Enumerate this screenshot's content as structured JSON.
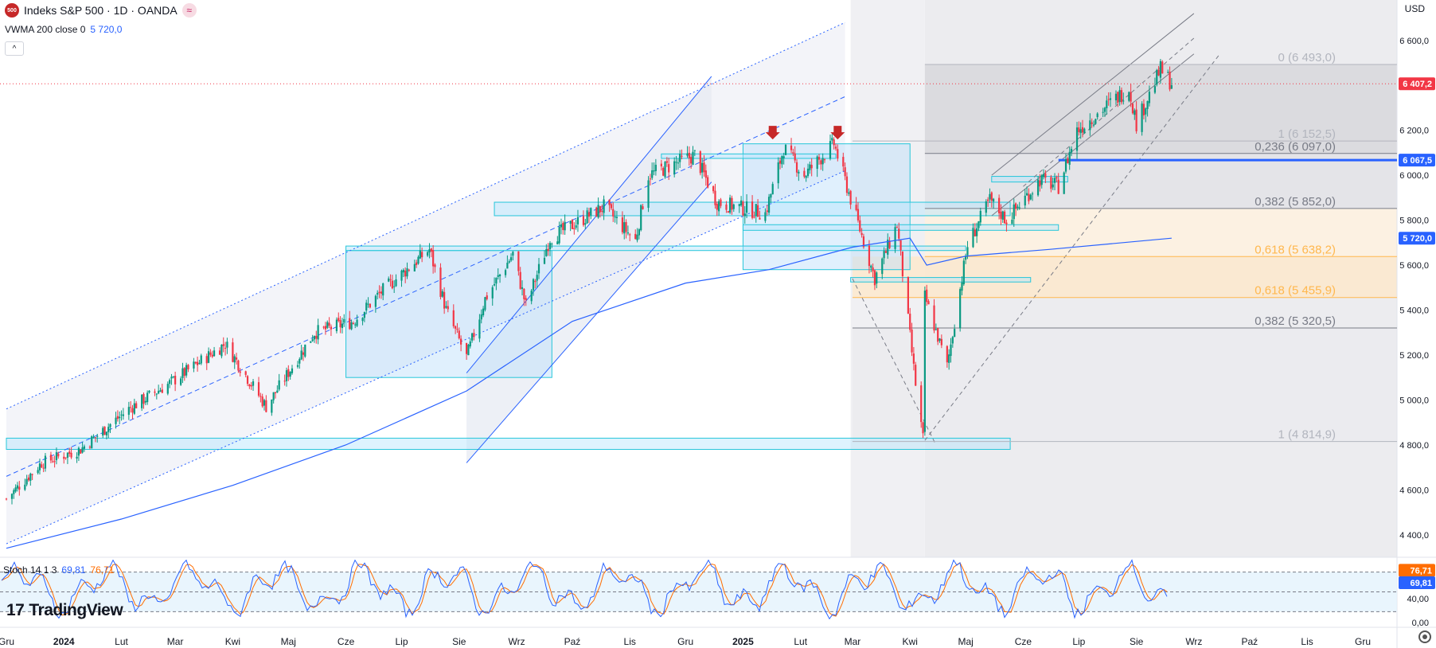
{
  "header": {
    "symbol_badge": "500",
    "title": "Indeks S&P 500 · 1D · OANDA",
    "wave_icon": "≈",
    "indicator_name": "VWMA 200 close 0",
    "indicator_value": "5 720,0",
    "collapse_icon": "^"
  },
  "currency": "USD",
  "stoch": {
    "label": "Stoch 14 1 3",
    "k_value": "69,81",
    "d_value": "76,71"
  },
  "watermark": {
    "logo": "17",
    "text": "TradingView"
  },
  "colors": {
    "up": "#089981",
    "down": "#f23645",
    "vwma": "#2962ff",
    "stoch_k": "#2962ff",
    "stoch_d": "#ff6d00",
    "price_badge": "#f23645",
    "level_badge": "#2962ff",
    "fib_orange": "#ffb74d"
  },
  "chart_data": {
    "type": "candlestick",
    "symbol": "Indeks S&P 500",
    "timeframe": "1D",
    "y_ticks": [
      "6 600,0",
      "6 400,0",
      "6 200,0",
      "6 000,0",
      "5 800,0",
      "5 600,0",
      "5 400,0",
      "5 200,0",
      "5 000,0",
      "4 800,0",
      "4 600,0",
      "4 400,0"
    ],
    "y_tick_values": [
      6600,
      6400,
      6200,
      6000,
      5800,
      5600,
      5400,
      5200,
      5000,
      4800,
      4600,
      4400
    ],
    "ylim": [
      4300,
      6780
    ],
    "x_ticks": [
      "Gru",
      "2024",
      "Lut",
      "Mar",
      "Kwi",
      "Maj",
      "Cze",
      "Lip",
      "Sie",
      "Wrz",
      "Paź",
      "Lis",
      "Gru",
      "2025",
      "Lut",
      "Mar",
      "Kwi",
      "Maj",
      "Cze",
      "Lip",
      "Sie",
      "Wrz",
      "Paź",
      "Lis",
      "Gru"
    ],
    "x_tick_dates": [
      "2023-12-01",
      "2024-01-01",
      "2024-02-01",
      "2024-03-01",
      "2024-04-01",
      "2024-05-01",
      "2024-06-01",
      "2024-07-01",
      "2024-08-01",
      "2024-09-01",
      "2024-10-01",
      "2024-11-01",
      "2024-12-01",
      "2025-01-01",
      "2025-02-01",
      "2025-03-01",
      "2025-04-01",
      "2025-05-01",
      "2025-06-01",
      "2025-07-01",
      "2025-08-01",
      "2025-09-01",
      "2025-10-01",
      "2025-11-01",
      "2025-12-01"
    ],
    "x_bold_ticks": [
      "2024",
      "2025"
    ],
    "price_path": [
      [
        "2023-12-01",
        4560
      ],
      [
        "2023-12-20",
        4720
      ],
      [
        "2024-01-10",
        4780
      ],
      [
        "2024-02-05",
        4960
      ],
      [
        "2024-02-28",
        5080
      ],
      [
        "2024-03-28",
        5250
      ],
      [
        "2024-04-19",
        4970
      ],
      [
        "2024-05-15",
        5300
      ],
      [
        "2024-06-05",
        5350
      ],
      [
        "2024-06-20",
        5480
      ],
      [
        "2024-07-16",
        5670
      ],
      [
        "2024-07-25",
        5400
      ],
      [
        "2024-08-05",
        5190
      ],
      [
        "2024-08-15",
        5450
      ],
      [
        "2024-08-30",
        5650
      ],
      [
        "2024-09-06",
        5420
      ],
      [
        "2024-09-19",
        5720
      ],
      [
        "2024-10-18",
        5860
      ],
      [
        "2024-11-04",
        5710
      ],
      [
        "2024-11-11",
        6000
      ],
      [
        "2024-12-06",
        6090
      ],
      [
        "2024-12-18",
        5880
      ],
      [
        "2025-01-13",
        5830
      ],
      [
        "2025-01-23",
        6120
      ],
      [
        "2025-02-03",
        6000
      ],
      [
        "2025-02-19",
        6140
      ],
      [
        "2025-03-13",
        5540
      ],
      [
        "2025-03-25",
        5780
      ],
      [
        "2025-04-04",
        5070
      ],
      [
        "2025-04-08",
        4830
      ],
      [
        "2025-04-09",
        5460
      ],
      [
        "2025-04-21",
        5150
      ],
      [
        "2025-05-02",
        5690
      ],
      [
        "2025-05-14",
        5890
      ],
      [
        "2025-05-23",
        5800
      ],
      [
        "2025-06-10",
        5980
      ],
      [
        "2025-06-20",
        5950
      ],
      [
        "2025-06-30",
        6200
      ],
      [
        "2025-07-28",
        6390
      ],
      [
        "2025-08-01",
        6230
      ],
      [
        "2025-08-14",
        6470
      ],
      [
        "2025-08-20",
        6410
      ]
    ],
    "vwma200": {
      "name": "VWMA 200 close 0",
      "points": [
        [
          "2023-12-01",
          4340
        ],
        [
          "2024-02-01",
          4470
        ],
        [
          "2024-04-01",
          4620
        ],
        [
          "2024-06-01",
          4800
        ],
        [
          "2024-08-05",
          5040
        ],
        [
          "2024-10-01",
          5350
        ],
        [
          "2024-12-01",
          5520
        ],
        [
          "2025-01-15",
          5580
        ],
        [
          "2025-03-01",
          5680
        ],
        [
          "2025-04-01",
          5720
        ],
        [
          "2025-04-10",
          5600
        ],
        [
          "2025-05-01",
          5640
        ],
        [
          "2025-06-15",
          5670
        ],
        [
          "2025-08-20",
          5720
        ]
      ]
    },
    "last_price": {
      "value": 6407.2,
      "label": "6 407,2"
    },
    "level_line": {
      "value": 6067.5,
      "label": "6 067,5"
    },
    "vwma_label": {
      "value": 5720,
      "label": "5 720,0"
    },
    "fib_upper": {
      "start_date": "2025-04-09",
      "levels": [
        {
          "ratio": "0",
          "price": 6493.0,
          "label": "0 (6 493,0)",
          "color": "#b2b5be"
        },
        {
          "ratio": "0,236",
          "price": 6097.0,
          "label": "0,236 (6 097,0)",
          "color": "#787b86"
        },
        {
          "ratio": "0,382",
          "price": 5852.0,
          "label": "0,382 (5 852,0)",
          "color": "#787b86"
        },
        {
          "ratio": "0,618",
          "price": 5638.2,
          "label": "0,618 (5 638,2)",
          "color": "#ffb74d"
        }
      ]
    },
    "fib_lower": {
      "start_date": "2025-03-01",
      "levels": [
        {
          "ratio": "1",
          "price": 6152.5,
          "label": "1 (6 152,5)",
          "color": "#b2b5be"
        },
        {
          "ratio": "0,618",
          "price": 5455.9,
          "label": "0,618 (5 455,9)",
          "color": "#ffb74d"
        },
        {
          "ratio": "0,382",
          "price": 5320.5,
          "label": "0,382 (5 320,5)",
          "color": "#787b86"
        },
        {
          "ratio": "1",
          "price": 4814.9,
          "label": "1 (4 814,9)",
          "color": "#b2b5be"
        }
      ]
    },
    "zones": [
      {
        "from": "2023-12-01",
        "to": "2025-05-25",
        "low": 4780,
        "high": 4830
      },
      {
        "from": "2024-06-01",
        "to": "2025-05-01",
        "low": 5665,
        "high": 5685
      },
      {
        "from": "2024-08-20",
        "to": "2025-05-25",
        "low": 5820,
        "high": 5880
      },
      {
        "from": "2024-11-18",
        "to": "2025-02-20",
        "low": 6075,
        "high": 6095
      },
      {
        "from": "2025-01-01",
        "to": "2025-06-20",
        "low": 5755,
        "high": 5780
      },
      {
        "from": "2025-02-28",
        "to": "2025-06-05",
        "low": 5525,
        "high": 5545
      },
      {
        "from": "2025-05-15",
        "to": "2025-06-25",
        "low": 5970,
        "high": 5995
      }
    ],
    "rects": [
      {
        "from": "2024-06-01",
        "to": "2024-09-20",
        "low": 5100,
        "high": 5665
      },
      {
        "from": "2025-01-01",
        "to": "2025-04-01",
        "low": 5580,
        "high": 6140
      }
    ],
    "sell_markers": [
      "2025-01-17",
      "2025-02-21"
    ],
    "stoch_panel": {
      "y_ticks": [
        "76,71",
        "69,81",
        "40,00",
        "0,00"
      ],
      "upper": 80,
      "lower": 20,
      "mid": 50,
      "k_last": 69.81,
      "d_last": 76.71
    }
  }
}
